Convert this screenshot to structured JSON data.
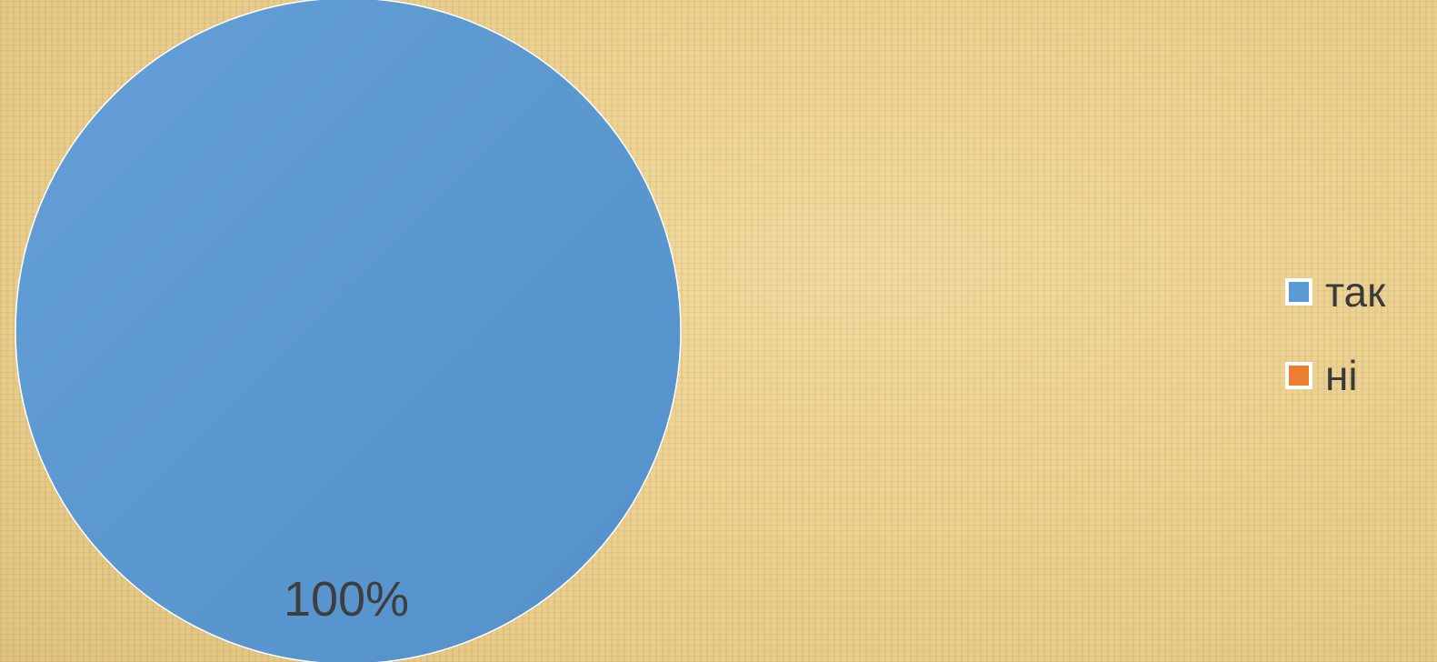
{
  "chart_data": {
    "type": "pie",
    "categories": [
      "так",
      "ні"
    ],
    "values": [
      100,
      0
    ],
    "data_labels": [
      "100%",
      ""
    ],
    "colors": [
      "#5b9bd5",
      "#ed7d31"
    ],
    "legend_position": "right",
    "title": ""
  }
}
